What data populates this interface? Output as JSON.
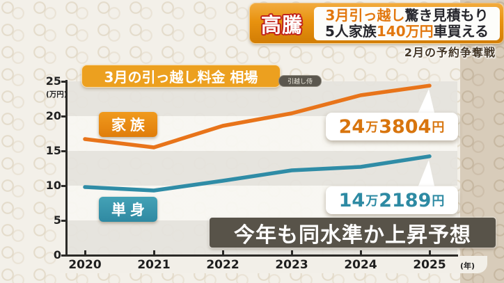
{
  "header": {
    "tag": "高騰",
    "line1_highlight": "3月引っ越し",
    "line1_rest": "驚き見積もり",
    "line2_start": "5人家族",
    "line2_highlight": "140万円",
    "line2_end": "車買える",
    "subnote": "2月の予約争奪戦"
  },
  "chart_data": {
    "type": "line",
    "title": "3月の引っ越し料金 相場",
    "source_badge": "引越し侍",
    "x": [
      2020,
      2021,
      2022,
      2023,
      2024,
      2025
    ],
    "x_unit": "(年)",
    "y_unit": "(万円)",
    "ylim": [
      0,
      25
    ],
    "yticks": [
      0,
      5,
      10,
      15,
      20,
      25
    ],
    "grid": "horizontal-bands",
    "legend_position": "on-chart-labels",
    "series": [
      {
        "name": "家族",
        "color": "#e8741a",
        "values": [
          16.7,
          15.5,
          18.6,
          20.4,
          23.0,
          24.38
        ],
        "end_label": "24万3804円"
      },
      {
        "name": "単身",
        "color": "#2f8ca6",
        "values": [
          9.8,
          9.3,
          10.7,
          12.2,
          12.7,
          14.22
        ],
        "end_label": "14万2189円"
      }
    ],
    "annotation": "今年も同水準か上昇予想"
  },
  "colors": {
    "family_line": "#e8741a",
    "single_line": "#2f8ca6",
    "header_accent": "#e2770e",
    "header_tag_outline": "#c0211b",
    "banner_bg": "#585349",
    "title_bg": "#eca01f"
  }
}
